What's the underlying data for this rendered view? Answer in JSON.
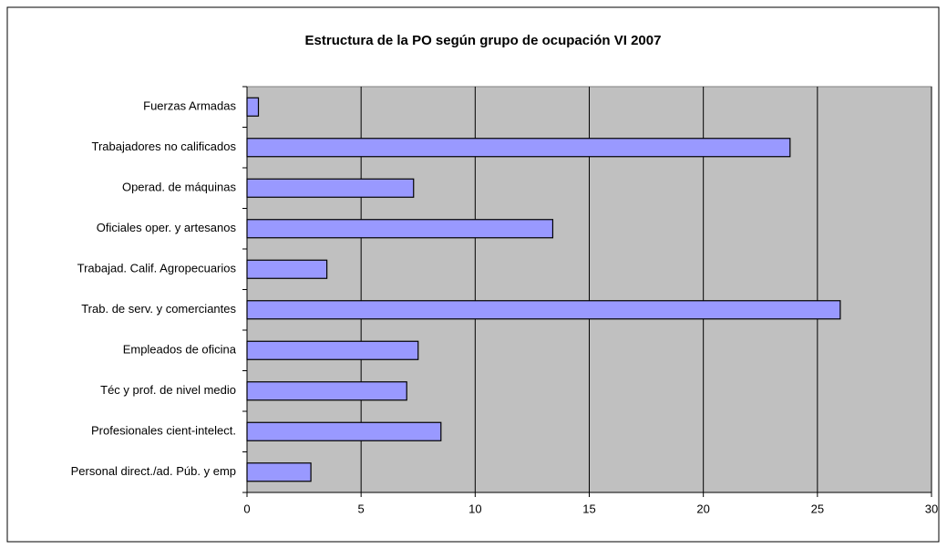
{
  "chart_data": {
    "type": "bar",
    "orientation": "horizontal",
    "title": "Estructura de la PO según grupo de ocupación VI 2007",
    "categories": [
      "Fuerzas Armadas",
      "Trabajadores no calificados",
      "Operad. de máquinas",
      "Oficiales oper. y artesanos",
      "Trabajad. Calif. Agropecuarios",
      "Trab. de serv. y comerciantes",
      "Empleados de oficina",
      "Téc y prof. de nivel medio",
      "Profesionales cient-intelect.",
      "Personal direct./ad. Púb. y emp"
    ],
    "values": [
      0.5,
      23.8,
      7.3,
      13.4,
      3.5,
      26.0,
      7.5,
      7.0,
      8.5,
      2.8
    ],
    "color": "#9999ff",
    "xlim": [
      0,
      30
    ],
    "xticks": [
      0,
      5,
      10,
      15,
      20,
      25,
      30
    ],
    "grid": true
  }
}
